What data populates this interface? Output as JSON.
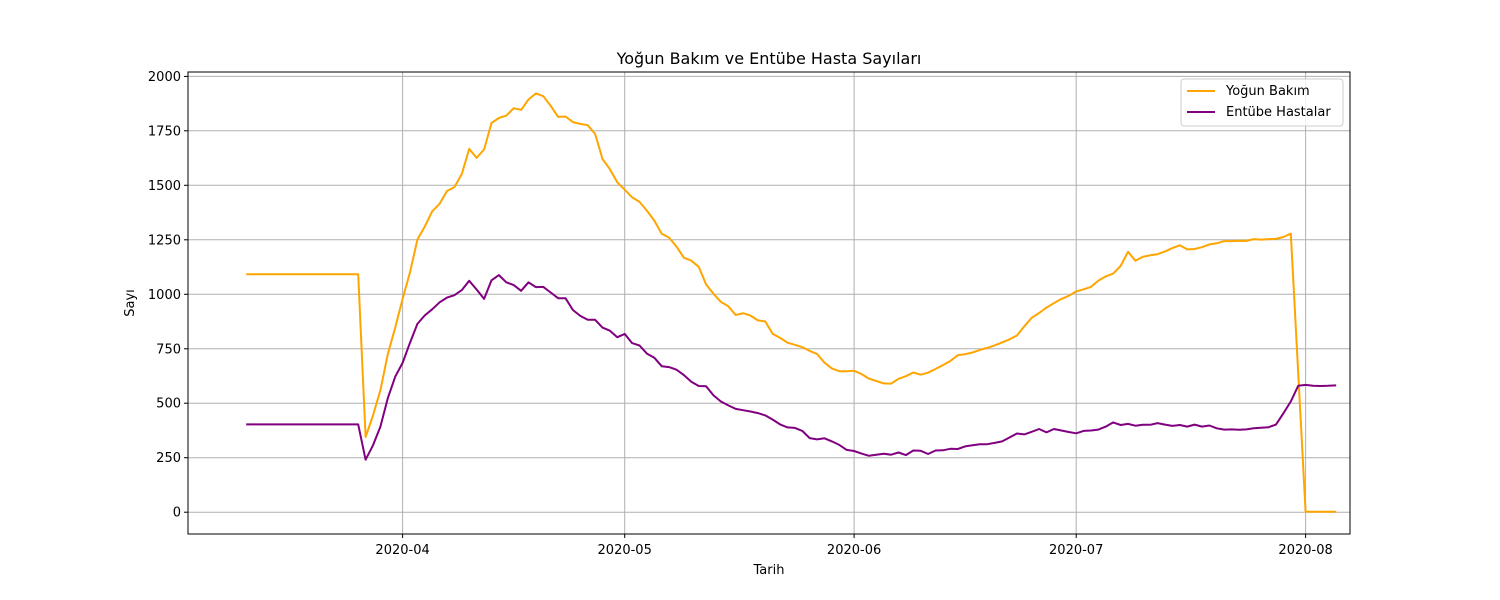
{
  "chart_data": {
    "type": "line",
    "title": "Yoğun Bakım ve Entübe Hasta Sayıları",
    "xlabel": "Tarih",
    "ylabel": "Sayı",
    "ylim": [
      -100,
      2020
    ],
    "xlim": [
      "2020-03-03",
      "2020-08-07"
    ],
    "yticks": [
      0,
      250,
      500,
      750,
      1000,
      1250,
      1500,
      1750,
      2000
    ],
    "xticks": [
      "2020-04-01",
      "2020-05-01",
      "2020-06-01",
      "2020-07-01",
      "2020-08-01"
    ],
    "xtick_labels": [
      "2020-04",
      "2020-05",
      "2020-06",
      "2020-07",
      "2020-08"
    ],
    "grid": true,
    "legend_position": "top-right",
    "series": [
      {
        "name": "Yoğun Bakım",
        "color": "#FFA500",
        "points": [
          [
            "2020-03-11",
            1092
          ],
          [
            "2020-03-26",
            1092
          ],
          [
            "2020-03-27",
            345
          ],
          [
            "2020-03-28",
            444
          ],
          [
            "2020-03-29",
            560
          ],
          [
            "2020-03-30",
            725
          ],
          [
            "2020-03-31",
            847
          ],
          [
            "2020-04-01",
            979
          ],
          [
            "2020-04-02",
            1101
          ],
          [
            "2020-04-03",
            1251
          ],
          [
            "2020-04-04",
            1311
          ],
          [
            "2020-04-05",
            1381
          ],
          [
            "2020-04-06",
            1415
          ],
          [
            "2020-04-07",
            1474
          ],
          [
            "2020-04-08",
            1492
          ],
          [
            "2020-04-09",
            1552
          ],
          [
            "2020-04-10",
            1667
          ],
          [
            "2020-04-11",
            1626
          ],
          [
            "2020-04-12",
            1665
          ],
          [
            "2020-04-13",
            1786
          ],
          [
            "2020-04-14",
            1809
          ],
          [
            "2020-04-15",
            1820
          ],
          [
            "2020-04-16",
            1854
          ],
          [
            "2020-04-17",
            1846
          ],
          [
            "2020-04-18",
            1894
          ],
          [
            "2020-04-19",
            1922
          ],
          [
            "2020-04-20",
            1909
          ],
          [
            "2020-04-21",
            1865
          ],
          [
            "2020-04-22",
            1814
          ],
          [
            "2020-04-23",
            1816
          ],
          [
            "2020-04-24",
            1790
          ],
          [
            "2020-04-25",
            1782
          ],
          [
            "2020-04-26",
            1776
          ],
          [
            "2020-04-27",
            1736
          ],
          [
            "2020-04-28",
            1621
          ],
          [
            "2020-04-29",
            1574
          ],
          [
            "2020-04-30",
            1514
          ],
          [
            "2020-05-01",
            1480
          ],
          [
            "2020-05-02",
            1445
          ],
          [
            "2020-05-03",
            1424
          ],
          [
            "2020-05-04",
            1384
          ],
          [
            "2020-05-05",
            1338
          ],
          [
            "2020-05-06",
            1278
          ],
          [
            "2020-05-07",
            1260
          ],
          [
            "2020-05-08",
            1219
          ],
          [
            "2020-05-09",
            1168
          ],
          [
            "2020-05-10",
            1154
          ],
          [
            "2020-05-11",
            1126
          ],
          [
            "2020-05-12",
            1045
          ],
          [
            "2020-05-13",
            1002
          ],
          [
            "2020-05-14",
            965
          ],
          [
            "2020-05-15",
            945
          ],
          [
            "2020-05-16",
            905
          ],
          [
            "2020-05-17",
            913
          ],
          [
            "2020-05-18",
            902
          ],
          [
            "2020-05-19",
            880
          ],
          [
            "2020-05-20",
            875
          ],
          [
            "2020-05-21",
            818
          ],
          [
            "2020-05-22",
            800
          ],
          [
            "2020-05-23",
            778
          ],
          [
            "2020-05-24",
            768
          ],
          [
            "2020-05-25",
            757
          ],
          [
            "2020-05-26",
            740
          ],
          [
            "2020-05-27",
            726
          ],
          [
            "2020-05-28",
            686
          ],
          [
            "2020-05-29",
            660
          ],
          [
            "2020-05-30",
            647
          ],
          [
            "2020-05-31",
            647
          ],
          [
            "2020-06-01",
            649
          ],
          [
            "2020-06-02",
            634
          ],
          [
            "2020-06-03",
            613
          ],
          [
            "2020-06-04",
            602
          ],
          [
            "2020-06-05",
            591
          ],
          [
            "2020-06-06",
            590
          ],
          [
            "2020-06-07",
            612
          ],
          [
            "2020-06-08",
            624
          ],
          [
            "2020-06-09",
            641
          ],
          [
            "2020-06-10",
            631
          ],
          [
            "2020-06-11",
            640
          ],
          [
            "2020-06-12",
            657
          ],
          [
            "2020-06-13",
            675
          ],
          [
            "2020-06-14",
            694
          ],
          [
            "2020-06-15",
            720
          ],
          [
            "2020-06-16",
            725
          ],
          [
            "2020-06-17",
            733
          ],
          [
            "2020-06-18",
            745
          ],
          [
            "2020-06-19",
            754
          ],
          [
            "2020-06-20",
            766
          ],
          [
            "2020-06-21",
            779
          ],
          [
            "2020-06-22",
            793
          ],
          [
            "2020-06-23",
            811
          ],
          [
            "2020-06-24",
            853
          ],
          [
            "2020-06-25",
            892
          ],
          [
            "2020-06-26",
            914
          ],
          [
            "2020-06-27",
            939
          ],
          [
            "2020-06-28",
            959
          ],
          [
            "2020-06-29",
            979
          ],
          [
            "2020-06-30",
            993
          ],
          [
            "2020-07-01",
            1013
          ],
          [
            "2020-07-02",
            1023
          ],
          [
            "2020-07-03",
            1034
          ],
          [
            "2020-07-04",
            1063
          ],
          [
            "2020-07-05",
            1082
          ],
          [
            "2020-07-06",
            1095
          ],
          [
            "2020-07-07",
            1130
          ],
          [
            "2020-07-08",
            1195
          ],
          [
            "2020-07-09",
            1154
          ],
          [
            "2020-07-10",
            1172
          ],
          [
            "2020-07-11",
            1179
          ],
          [
            "2020-07-12",
            1184
          ],
          [
            "2020-07-13",
            1197
          ],
          [
            "2020-07-14",
            1212
          ],
          [
            "2020-07-15",
            1225
          ],
          [
            "2020-07-16",
            1206
          ],
          [
            "2020-07-17",
            1208
          ],
          [
            "2020-07-18",
            1216
          ],
          [
            "2020-07-19",
            1229
          ],
          [
            "2020-07-20",
            1234
          ],
          [
            "2020-07-21",
            1244
          ],
          [
            "2020-07-22",
            1244
          ],
          [
            "2020-07-23",
            1246
          ],
          [
            "2020-07-24",
            1245
          ],
          [
            "2020-07-25",
            1253
          ],
          [
            "2020-07-26",
            1251
          ],
          [
            "2020-07-27",
            1253
          ],
          [
            "2020-07-28",
            1254
          ],
          [
            "2020-07-29",
            1263
          ],
          [
            "2020-07-30",
            1278
          ],
          [
            "2020-08-01",
            2
          ],
          [
            "2020-08-05",
            2
          ]
        ]
      },
      {
        "name": "Entübe Hastalar",
        "color": "#800080",
        "points": [
          [
            "2020-03-11",
            403
          ],
          [
            "2020-03-26",
            403
          ],
          [
            "2020-03-27",
            241
          ],
          [
            "2020-03-28",
            307
          ],
          [
            "2020-03-29",
            393
          ],
          [
            "2020-03-30",
            523
          ],
          [
            "2020-03-31",
            622
          ],
          [
            "2020-04-01",
            685
          ],
          [
            "2020-04-02",
            778
          ],
          [
            "2020-04-03",
            864
          ],
          [
            "2020-04-04",
            903
          ],
          [
            "2020-04-05",
            931
          ],
          [
            "2020-04-06",
            963
          ],
          [
            "2020-04-07",
            985
          ],
          [
            "2020-04-08",
            996
          ],
          [
            "2020-04-09",
            1019
          ],
          [
            "2020-04-10",
            1062
          ],
          [
            "2020-04-11",
            1022
          ],
          [
            "2020-04-12",
            979
          ],
          [
            "2020-04-13",
            1064
          ],
          [
            "2020-04-14",
            1088
          ],
          [
            "2020-04-15",
            1055
          ],
          [
            "2020-04-16",
            1042
          ],
          [
            "2020-04-17",
            1016
          ],
          [
            "2020-04-18",
            1055
          ],
          [
            "2020-04-19",
            1033
          ],
          [
            "2020-04-20",
            1034
          ],
          [
            "2020-04-21",
            1008
          ],
          [
            "2020-04-22",
            982
          ],
          [
            "2020-04-23",
            982
          ],
          [
            "2020-04-24",
            928
          ],
          [
            "2020-04-25",
            901
          ],
          [
            "2020-04-26",
            883
          ],
          [
            "2020-04-27",
            883
          ],
          [
            "2020-04-28",
            847
          ],
          [
            "2020-04-29",
            833
          ],
          [
            "2020-04-30",
            803
          ],
          [
            "2020-05-01",
            818
          ],
          [
            "2020-05-02",
            776
          ],
          [
            "2020-05-03",
            765
          ],
          [
            "2020-05-04",
            728
          ],
          [
            "2020-05-05",
            709
          ],
          [
            "2020-05-06",
            670
          ],
          [
            "2020-05-07",
            666
          ],
          [
            "2020-05-08",
            654
          ],
          [
            "2020-05-09",
            629
          ],
          [
            "2020-05-10",
            599
          ],
          [
            "2020-05-11",
            579
          ],
          [
            "2020-05-12",
            578
          ],
          [
            "2020-05-13",
            536
          ],
          [
            "2020-05-14",
            508
          ],
          [
            "2020-05-15",
            490
          ],
          [
            "2020-05-16",
            474
          ],
          [
            "2020-05-17",
            468
          ],
          [
            "2020-05-18",
            462
          ],
          [
            "2020-05-19",
            455
          ],
          [
            "2020-05-20",
            444
          ],
          [
            "2020-05-21",
            425
          ],
          [
            "2020-05-22",
            403
          ],
          [
            "2020-05-23",
            389
          ],
          [
            "2020-05-24",
            387
          ],
          [
            "2020-05-25",
            373
          ],
          [
            "2020-05-26",
            340
          ],
          [
            "2020-05-27",
            334
          ],
          [
            "2020-05-28",
            339
          ],
          [
            "2020-05-29",
            325
          ],
          [
            "2020-05-30",
            309
          ],
          [
            "2020-05-31",
            286
          ],
          [
            "2020-06-01",
            281
          ],
          [
            "2020-06-02",
            269
          ],
          [
            "2020-06-03",
            259
          ],
          [
            "2020-06-04",
            264
          ],
          [
            "2020-06-05",
            268
          ],
          [
            "2020-06-06",
            264
          ],
          [
            "2020-06-07",
            274
          ],
          [
            "2020-06-08",
            262
          ],
          [
            "2020-06-09",
            283
          ],
          [
            "2020-06-10",
            282
          ],
          [
            "2020-06-11",
            267
          ],
          [
            "2020-06-12",
            283
          ],
          [
            "2020-06-13",
            284
          ],
          [
            "2020-06-14",
            291
          ],
          [
            "2020-06-15",
            290
          ],
          [
            "2020-06-16",
            302
          ],
          [
            "2020-06-17",
            307
          ],
          [
            "2020-06-18",
            312
          ],
          [
            "2020-06-19",
            312
          ],
          [
            "2020-06-20",
            318
          ],
          [
            "2020-06-21",
            325
          ],
          [
            "2020-06-22",
            343
          ],
          [
            "2020-06-23",
            361
          ],
          [
            "2020-06-24",
            357
          ],
          [
            "2020-06-25",
            369
          ],
          [
            "2020-06-26",
            382
          ],
          [
            "2020-06-27",
            366
          ],
          [
            "2020-06-28",
            382
          ],
          [
            "2020-06-29",
            375
          ],
          [
            "2020-06-30",
            368
          ],
          [
            "2020-07-01",
            362
          ],
          [
            "2020-07-02",
            373
          ],
          [
            "2020-07-03",
            375
          ],
          [
            "2020-07-04",
            379
          ],
          [
            "2020-07-05",
            393
          ],
          [
            "2020-07-06",
            412
          ],
          [
            "2020-07-07",
            400
          ],
          [
            "2020-07-08",
            405
          ],
          [
            "2020-07-09",
            397
          ],
          [
            "2020-07-10",
            401
          ],
          [
            "2020-07-11",
            401
          ],
          [
            "2020-07-12",
            409
          ],
          [
            "2020-07-13",
            402
          ],
          [
            "2020-07-14",
            396
          ],
          [
            "2020-07-15",
            400
          ],
          [
            "2020-07-16",
            393
          ],
          [
            "2020-07-17",
            402
          ],
          [
            "2020-07-18",
            393
          ],
          [
            "2020-07-19",
            398
          ],
          [
            "2020-07-20",
            385
          ],
          [
            "2020-07-21",
            379
          ],
          [
            "2020-07-22",
            380
          ],
          [
            "2020-07-23",
            378
          ],
          [
            "2020-07-24",
            380
          ],
          [
            "2020-07-25",
            385
          ],
          [
            "2020-07-26",
            388
          ],
          [
            "2020-07-27",
            390
          ],
          [
            "2020-07-28",
            402
          ],
          [
            "2020-07-29",
            454
          ],
          [
            "2020-07-30",
            508
          ],
          [
            "2020-07-31",
            580
          ],
          [
            "2020-08-01",
            584
          ],
          [
            "2020-08-02",
            580
          ],
          [
            "2020-08-03",
            579
          ],
          [
            "2020-08-04",
            580
          ],
          [
            "2020-08-05",
            582
          ]
        ]
      }
    ]
  }
}
